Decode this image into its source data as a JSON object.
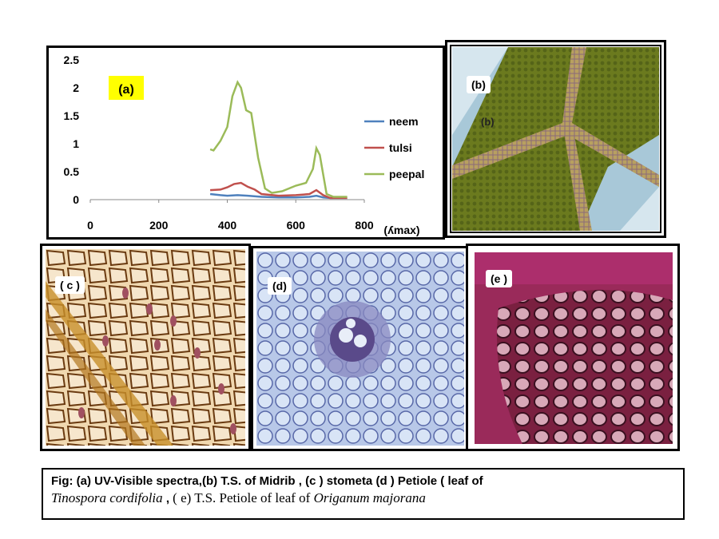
{
  "panel_a": {
    "label": "(a)",
    "chart_data": {
      "type": "line",
      "xlabel": "(ʎmax)",
      "ylabel": "",
      "xlim": [
        0,
        800
      ],
      "ylim": [
        0,
        2.5
      ],
      "x_ticks": [
        "0",
        "200",
        "400",
        "600",
        "800"
      ],
      "y_ticks": [
        "0",
        "0.5",
        "1",
        "1.5",
        "2",
        "2.5"
      ],
      "legend_position": "right",
      "grid": false,
      "series": [
        {
          "name": "neem",
          "color": "#4f81bd",
          "x": [
            350,
            380,
            400,
            430,
            460,
            500,
            550,
            600,
            640,
            660,
            680,
            700,
            720,
            750
          ],
          "y": [
            0.1,
            0.08,
            0.07,
            0.08,
            0.07,
            0.05,
            0.04,
            0.04,
            0.05,
            0.07,
            0.04,
            0.03,
            0.03,
            0.03
          ]
        },
        {
          "name": "tulsi",
          "color": "#c0504d",
          "x": [
            350,
            380,
            400,
            420,
            440,
            460,
            480,
            500,
            550,
            600,
            640,
            660,
            680,
            700,
            750
          ],
          "y": [
            0.17,
            0.18,
            0.22,
            0.28,
            0.3,
            0.23,
            0.18,
            0.1,
            0.07,
            0.08,
            0.1,
            0.17,
            0.08,
            0.03,
            0.03
          ]
        },
        {
          "name": "peepal",
          "color": "#9bbb59",
          "x": [
            350,
            360,
            380,
            400,
            415,
            430,
            440,
            455,
            470,
            490,
            510,
            530,
            560,
            600,
            630,
            650,
            660,
            670,
            690,
            710,
            730,
            750
          ],
          "y": [
            0.9,
            0.88,
            1.05,
            1.3,
            1.85,
            2.1,
            2.0,
            1.6,
            1.55,
            0.75,
            0.2,
            0.12,
            0.15,
            0.25,
            0.3,
            0.55,
            0.92,
            0.8,
            0.1,
            0.05,
            0.05,
            0.05
          ]
        }
      ]
    }
  },
  "panel_b": {
    "label": "(b)",
    "inner_label": "(b)"
  },
  "panel_c": {
    "label": "( c )"
  },
  "panel_d": {
    "label": "(d)"
  },
  "panel_e": {
    "label": "(e )"
  },
  "caption": {
    "line1": "Fig: (a) UV-Visible spectra,(b) T.S. of  Midrib , (c )  stometa  (d )  Petiole ( leaf of",
    "line2_species1": "Tinospora cordifolia",
    "line2_sep": " , ",
    "line2_mid": "( e)  T.S. Petiole  of  leaf  of  ",
    "line2_species2": "Origanum majorana"
  },
  "colors": {
    "neem": "#4f81bd",
    "tulsi": "#c0504d",
    "peepal": "#9bbb59",
    "label_highlight": "#ffff00"
  }
}
